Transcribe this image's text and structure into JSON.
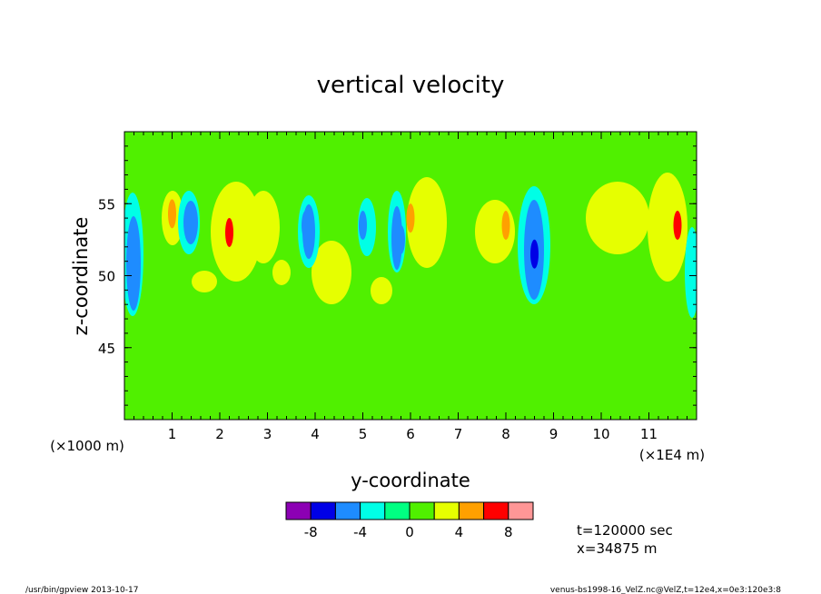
{
  "chart_data": {
    "type": "heatmap",
    "title": "vertical velocity",
    "xlabel": "y-coordinate",
    "ylabel": "z-coordinate",
    "x_unit_left": "(×1000 m)",
    "x_unit_right": "(×1E4 m)",
    "xlim": [
      0,
      12
    ],
    "ylim": [
      40,
      60
    ],
    "x_ticks": [
      "1",
      "2",
      "3",
      "4",
      "5",
      "6",
      "7",
      "8",
      "9",
      "10",
      "11"
    ],
    "x_tick_values": [
      1,
      2,
      3,
      4,
      5,
      6,
      7,
      8,
      9,
      10,
      11
    ],
    "y_ticks": [
      "45",
      "50",
      "55"
    ],
    "y_tick_values": [
      45,
      50,
      55
    ],
    "colorbar": {
      "colors": [
        "#8c00b4",
        "#0000e6",
        "#1e8cff",
        "#00ffe6",
        "#00ff82",
        "#50f000",
        "#e6ff00",
        "#ffa000",
        "#ff0000",
        "#ff9696"
      ],
      "labels": [
        "-8",
        "-4",
        "0",
        "4",
        "8"
      ],
      "label_positions": [
        1,
        3,
        5,
        7,
        9
      ]
    },
    "background": "#50f000",
    "features": [
      {
        "y": 0.2,
        "z": 50.5,
        "value": -6
      },
      {
        "y": 1.4,
        "z": 53.5,
        "value": -5
      },
      {
        "y": 1.0,
        "z": 54.3,
        "value": 5
      },
      {
        "y": 2.2,
        "z": 53.0,
        "value": 6
      },
      {
        "y": 3.8,
        "z": 53.5,
        "value": -6
      },
      {
        "y": 5.0,
        "z": 53.5,
        "value": -5
      },
      {
        "y": 5.8,
        "z": 52.5,
        "value": -6
      },
      {
        "y": 6.0,
        "z": 54.0,
        "value": 5
      },
      {
        "y": 8.0,
        "z": 53.5,
        "value": 5
      },
      {
        "y": 8.6,
        "z": 51.5,
        "value": -7
      },
      {
        "y": 11.6,
        "z": 53.5,
        "value": 6
      }
    ],
    "annotations": [
      "t=120000 sec",
      "x=34875 m"
    ]
  },
  "footer": {
    "left": "/usr/bin/gpview  2013-10-17",
    "right": "venus-bs1998-16_VelZ.nc@VelZ,t=12e4,x=0e3:120e3:8"
  }
}
